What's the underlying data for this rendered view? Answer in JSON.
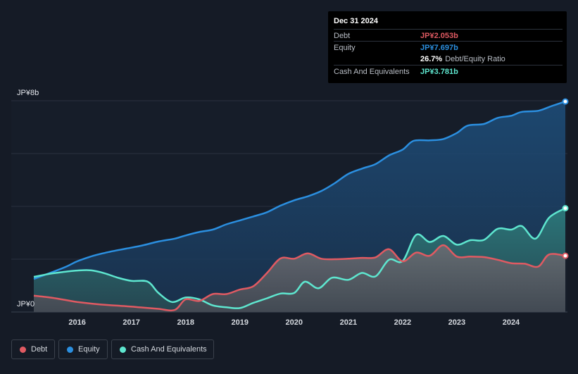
{
  "tooltip": {
    "date": "Dec 31 2024",
    "rows": [
      {
        "label": "Debt",
        "value": "JP¥2.053b"
      },
      {
        "label": "Equity",
        "value": "JP¥7.697b"
      },
      {
        "label": "",
        "value": "26.7%",
        "sub": "Debt/Equity Ratio"
      },
      {
        "label": "Cash And Equivalents",
        "value": "JP¥3.781b"
      }
    ]
  },
  "legend": [
    {
      "label": "Debt"
    },
    {
      "label": "Equity"
    },
    {
      "label": "Cash And Equivalents"
    }
  ],
  "colors": {
    "debt": "#e05a62",
    "equity": "#2b8fe0",
    "cash": "#5ee6cf",
    "background": "#151b26",
    "grid": "#2a3140"
  },
  "chart_data": {
    "type": "area",
    "title": "",
    "xlabel": "",
    "ylabel": "",
    "y_top_label": "JP¥8b",
    "y_bottom_label": "JP¥0",
    "ylim": [
      0,
      8
    ],
    "xlim": [
      2015.2,
      2025.0
    ],
    "x_ticks": [
      2016,
      2017,
      2018,
      2019,
      2020,
      2021,
      2022,
      2023,
      2024
    ],
    "grid": true,
    "series": [
      {
        "name": "Equity",
        "key": "equity",
        "points": [
          [
            2015.2,
            1.25
          ],
          [
            2015.5,
            1.48
          ],
          [
            2015.8,
            1.72
          ],
          [
            2016.0,
            1.92
          ],
          [
            2016.3,
            2.13
          ],
          [
            2016.6,
            2.28
          ],
          [
            2016.9,
            2.4
          ],
          [
            2017.2,
            2.52
          ],
          [
            2017.5,
            2.67
          ],
          [
            2017.8,
            2.78
          ],
          [
            2018.0,
            2.9
          ],
          [
            2018.25,
            3.03
          ],
          [
            2018.5,
            3.12
          ],
          [
            2018.75,
            3.32
          ],
          [
            2019.0,
            3.47
          ],
          [
            2019.25,
            3.62
          ],
          [
            2019.5,
            3.78
          ],
          [
            2019.75,
            4.03
          ],
          [
            2020.0,
            4.23
          ],
          [
            2020.25,
            4.38
          ],
          [
            2020.5,
            4.58
          ],
          [
            2020.75,
            4.88
          ],
          [
            2021.0,
            5.23
          ],
          [
            2021.25,
            5.43
          ],
          [
            2021.5,
            5.6
          ],
          [
            2021.75,
            5.93
          ],
          [
            2022.0,
            6.15
          ],
          [
            2022.2,
            6.48
          ],
          [
            2022.5,
            6.5
          ],
          [
            2022.75,
            6.55
          ],
          [
            2023.0,
            6.78
          ],
          [
            2023.2,
            7.06
          ],
          [
            2023.5,
            7.12
          ],
          [
            2023.75,
            7.35
          ],
          [
            2024.0,
            7.43
          ],
          [
            2024.2,
            7.58
          ],
          [
            2024.5,
            7.62
          ],
          [
            2024.75,
            7.8
          ],
          [
            2025.0,
            7.97
          ]
        ]
      },
      {
        "name": "Cash And Equivalents",
        "key": "cash",
        "points": [
          [
            2015.2,
            1.33
          ],
          [
            2015.5,
            1.45
          ],
          [
            2015.8,
            1.53
          ],
          [
            2016.0,
            1.57
          ],
          [
            2016.25,
            1.58
          ],
          [
            2016.5,
            1.47
          ],
          [
            2016.75,
            1.3
          ],
          [
            2017.0,
            1.18
          ],
          [
            2017.3,
            1.15
          ],
          [
            2017.5,
            0.72
          ],
          [
            2017.75,
            0.38
          ],
          [
            2018.0,
            0.55
          ],
          [
            2018.25,
            0.48
          ],
          [
            2018.5,
            0.25
          ],
          [
            2018.75,
            0.18
          ],
          [
            2019.0,
            0.15
          ],
          [
            2019.25,
            0.35
          ],
          [
            2019.5,
            0.52
          ],
          [
            2019.75,
            0.7
          ],
          [
            2020.0,
            0.72
          ],
          [
            2020.2,
            1.15
          ],
          [
            2020.45,
            0.9
          ],
          [
            2020.7,
            1.3
          ],
          [
            2021.0,
            1.22
          ],
          [
            2021.25,
            1.48
          ],
          [
            2021.5,
            1.35
          ],
          [
            2021.75,
            1.98
          ],
          [
            2022.0,
            1.93
          ],
          [
            2022.25,
            2.92
          ],
          [
            2022.5,
            2.65
          ],
          [
            2022.75,
            2.88
          ],
          [
            2023.0,
            2.55
          ],
          [
            2023.25,
            2.72
          ],
          [
            2023.5,
            2.73
          ],
          [
            2023.75,
            3.15
          ],
          [
            2024.0,
            3.12
          ],
          [
            2024.2,
            3.25
          ],
          [
            2024.45,
            2.78
          ],
          [
            2024.7,
            3.57
          ],
          [
            2025.0,
            3.93
          ]
        ]
      },
      {
        "name": "Debt",
        "key": "debt",
        "points": [
          [
            2015.2,
            0.62
          ],
          [
            2015.5,
            0.55
          ],
          [
            2015.8,
            0.45
          ],
          [
            2016.0,
            0.38
          ],
          [
            2016.3,
            0.31
          ],
          [
            2016.6,
            0.26
          ],
          [
            2016.9,
            0.22
          ],
          [
            2017.2,
            0.17
          ],
          [
            2017.5,
            0.12
          ],
          [
            2017.8,
            0.08
          ],
          [
            2018.0,
            0.48
          ],
          [
            2018.25,
            0.42
          ],
          [
            2018.5,
            0.68
          ],
          [
            2018.75,
            0.68
          ],
          [
            2019.0,
            0.85
          ],
          [
            2019.25,
            0.98
          ],
          [
            2019.5,
            1.48
          ],
          [
            2019.75,
            2.03
          ],
          [
            2020.0,
            2.02
          ],
          [
            2020.25,
            2.22
          ],
          [
            2020.5,
            2.02
          ],
          [
            2020.75,
            2.0
          ],
          [
            2021.0,
            2.02
          ],
          [
            2021.25,
            2.05
          ],
          [
            2021.5,
            2.07
          ],
          [
            2021.75,
            2.38
          ],
          [
            2022.0,
            1.92
          ],
          [
            2022.25,
            2.25
          ],
          [
            2022.5,
            2.13
          ],
          [
            2022.75,
            2.53
          ],
          [
            2023.0,
            2.1
          ],
          [
            2023.25,
            2.1
          ],
          [
            2023.5,
            2.08
          ],
          [
            2023.75,
            1.98
          ],
          [
            2024.0,
            1.85
          ],
          [
            2024.25,
            1.83
          ],
          [
            2024.5,
            1.72
          ],
          [
            2024.7,
            2.18
          ],
          [
            2025.0,
            2.13
          ]
        ]
      }
    ]
  }
}
